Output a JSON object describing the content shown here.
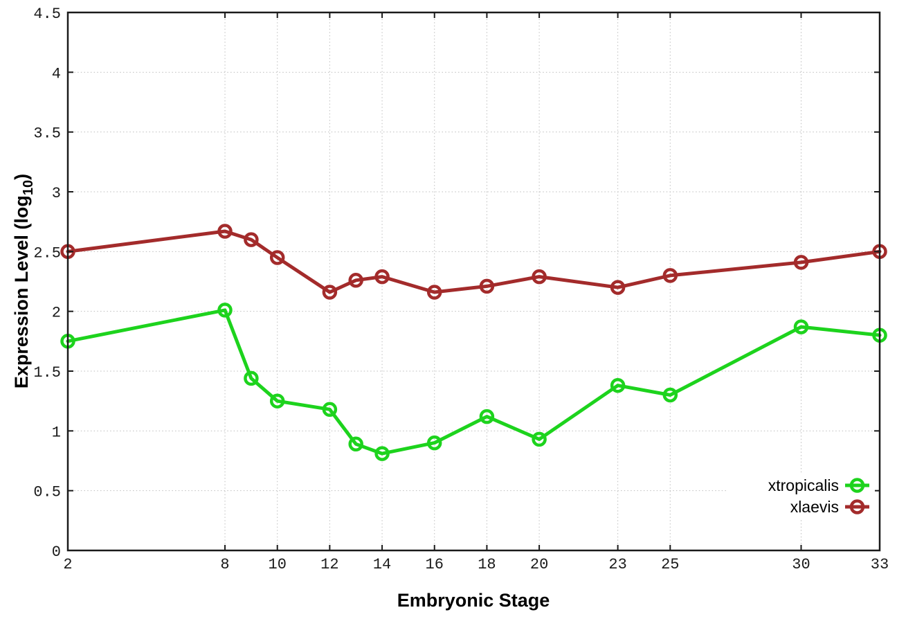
{
  "chart_data": {
    "type": "line",
    "title": "",
    "xlabel": "Embryonic Stage",
    "ylabel": {
      "prefix": "Expression Level (log",
      "subscript": "10",
      "suffix": ")"
    },
    "x": [
      2,
      8,
      9,
      10,
      12,
      13,
      14,
      16,
      18,
      20,
      23,
      25,
      30,
      33
    ],
    "series": [
      {
        "name": "xtropicalis",
        "color": "#1dd31d",
        "values": [
          1.75,
          2.01,
          1.44,
          1.25,
          1.18,
          0.89,
          0.81,
          0.9,
          1.12,
          0.93,
          1.38,
          1.3,
          1.87,
          1.8
        ]
      },
      {
        "name": "xlaevis",
        "color": "#a32b2b",
        "values": [
          2.5,
          2.67,
          2.6,
          2.45,
          2.16,
          2.26,
          2.29,
          2.16,
          2.21,
          2.29,
          2.2,
          2.3,
          2.41,
          2.5
        ]
      }
    ],
    "xlim": [
      2,
      33
    ],
    "ylim": [
      0,
      4.5
    ],
    "x_ticks": [
      2,
      8,
      10,
      12,
      14,
      16,
      18,
      20,
      23,
      25,
      30,
      33
    ],
    "x_tick_labels": [
      "2",
      "8",
      "10",
      "12",
      "14",
      "16",
      "18",
      "20",
      "23",
      "25",
      "30",
      "33"
    ],
    "y_ticks": [
      0,
      0.5,
      1,
      1.5,
      2,
      2.5,
      3,
      3.5,
      4,
      4.5
    ],
    "y_tick_labels": [
      "0",
      "0.5",
      "1",
      "1.5",
      "2",
      "2.5",
      "3",
      "3.5",
      "4",
      "4.5"
    ],
    "grid": true,
    "legend_position": "inside-bottom-right",
    "marker": "open-circle"
  },
  "colors": {
    "background": "#ffffff",
    "axis": "#1a1a1a",
    "grid": "#bdbdbd",
    "tick_label": "#1a1a1a",
    "legend_background": "#ffffff"
  }
}
